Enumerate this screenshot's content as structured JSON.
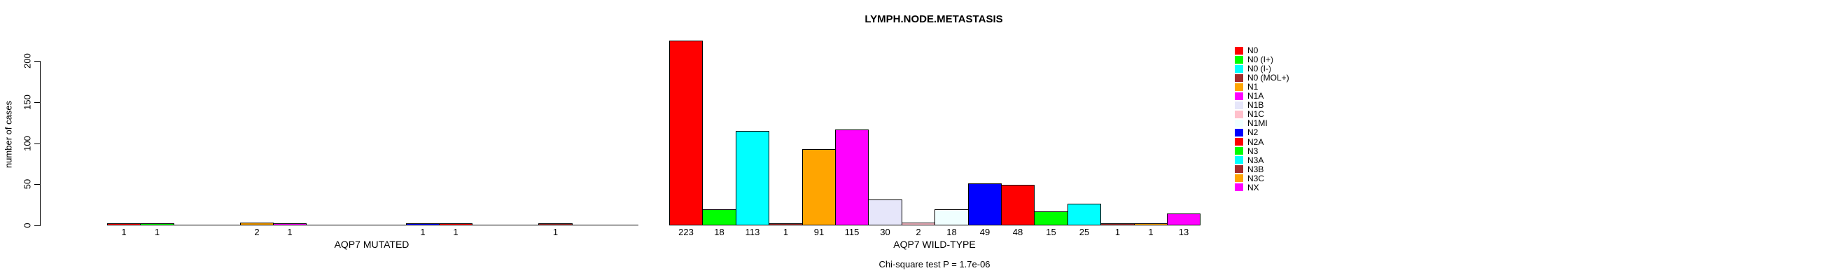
{
  "chart_data": {
    "type": "bar",
    "title": "LYMPH.NODE.METASTASIS",
    "ylabel": "number of cases",
    "ylim": [
      0,
      200
    ],
    "yticks": [
      0,
      50,
      100,
      150,
      200
    ],
    "grid": false,
    "legend_position": "right",
    "categories": [
      "N0",
      "N0 (I+)",
      "N0 (I-)",
      "N0 (MOL+)",
      "N1",
      "N1A",
      "N1B",
      "N1C",
      "N1MI",
      "N2",
      "N2A",
      "N3",
      "N3A",
      "N3B",
      "N3C",
      "NX"
    ],
    "colors": [
      "#FF0000",
      "#00FF00",
      "#00FFFF",
      "#A52A2A",
      "#FFA500",
      "#FF00FF",
      "#E6E6FA",
      "#FFC0CB",
      "#F0FFFF",
      "#0000FF",
      "#FF0000",
      "#00FF00",
      "#00FFFF",
      "#A52A2A",
      "#FFA500",
      "#FF00FF"
    ],
    "groups": [
      {
        "label": "AQP7 MUTATED",
        "values": [
          1,
          1,
          0,
          0,
          2,
          1,
          0,
          0,
          0,
          1,
          1,
          0,
          0,
          1,
          0,
          0
        ]
      },
      {
        "label": "AQP7 WILD-TYPE",
        "values": [
          223,
          18,
          113,
          1,
          91,
          115,
          30,
          2,
          18,
          49,
          48,
          15,
          25,
          1,
          1,
          13
        ]
      }
    ],
    "bar_label_rule": "value shown under each bar when value > 0",
    "annotation": "Chi-square test P = 1.7e-06"
  }
}
